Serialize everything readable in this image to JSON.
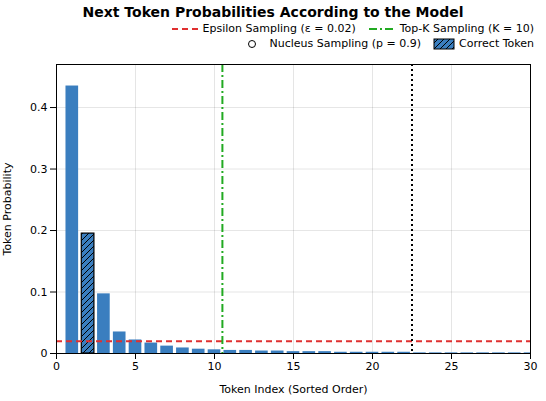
{
  "chart_data": {
    "type": "bar",
    "title": "Next Token Probabilities According to the Model",
    "x_label": "Token Index (Sorted Order)",
    "y_label": "Token Probability",
    "x": [
      1,
      2,
      3,
      4,
      5,
      6,
      7,
      8,
      9,
      10,
      11,
      12,
      13,
      14,
      15,
      16,
      17,
      18,
      19,
      20,
      21,
      22,
      23,
      24,
      25,
      26,
      27,
      28,
      29,
      30
    ],
    "values": [
      0.435,
      0.195,
      0.097,
      0.035,
      0.022,
      0.017,
      0.012,
      0.009,
      0.007,
      0.006,
      0.005,
      0.005,
      0.004,
      0.004,
      0.003,
      0.003,
      0.003,
      0.002,
      0.002,
      0.002,
      0.002,
      0.002,
      0.001,
      0.001,
      0.001,
      0.001,
      0.001,
      0.001,
      0.001,
      0.001
    ],
    "color": "#3a7ebf",
    "highlight": {
      "name": "Correct Token",
      "x": 2
    },
    "lines": [
      {
        "name": "Epsilon Sampling (ε = 0.02)",
        "axis": "y",
        "value": 0.02,
        "color": "#e03030",
        "line_style": "dashed"
      },
      {
        "name": "Top-K Sampling (K = 10)",
        "axis": "x",
        "value": 10.5,
        "color": "#22aa22",
        "line_style": "dashdot"
      },
      {
        "name": "Nucleus Sampling (p = 0.9)",
        "axis": "x",
        "value": 22.5,
        "color": "#000000",
        "line_style": "dotted",
        "marker": "circle"
      }
    ],
    "xlim": [
      0,
      30
    ],
    "xticks": [
      0,
      5,
      10,
      15,
      20,
      25,
      30
    ],
    "ylim": [
      0,
      0.47
    ],
    "yticks": [
      0,
      0.1,
      0.2,
      0.3,
      0.4
    ],
    "grid": true,
    "legend": "upper right"
  }
}
